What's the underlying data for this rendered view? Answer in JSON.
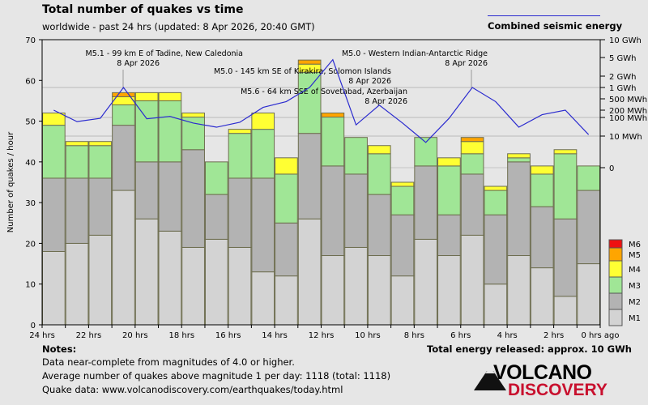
{
  "header": {
    "title": "Total number of quakes vs time",
    "subtitle": "worldwide - past 24 hrs (updated: 8 Apr 2026, 20:40 GMT)",
    "energy_legend": "Combined seismic energy"
  },
  "footer": {
    "notes_title": "Notes:",
    "notes": [
      "Data near-complete from magnitudes of 4.0 or higher.",
      "Average number of quakes above magnitude 1 per day: 1118 (total: 1118)",
      "Quake data: www.volcanodiscovery.com/earthquakes/today.html"
    ],
    "energy_total": "Total energy released: approx. 10 GWh",
    "logo_line1": "VOLCANO",
    "logo_line2": "DISCOVERY"
  },
  "colors": {
    "M1": "#d3d3d3",
    "M2": "#b3b3b3",
    "M3": "#a0e696",
    "M4": "#ffff33",
    "M5": "#ffa500",
    "M6": "#ee1111",
    "energy_line": "#2b2bcf",
    "background": "#e6e6e6"
  },
  "chart_data": {
    "type": "bar",
    "stacked": true,
    "ylabel": "Number of quakes / hour",
    "ylim": [
      0,
      70
    ],
    "yticks": [
      "0",
      "10",
      "20",
      "30",
      "40",
      "50",
      "60",
      "70"
    ],
    "xticks": [
      "24 hrs",
      "22 hrs",
      "20 hrs",
      "18 hrs",
      "16 hrs",
      "14 hrs",
      "12 hrs",
      "10 hrs",
      "8 hrs",
      "6 hrs",
      "4 hrs",
      "2 hrs",
      "0 hrs ago"
    ],
    "grid": true,
    "legend_position": "right-bottom",
    "series": [
      {
        "name": "M1",
        "values": [
          18,
          20,
          22,
          33,
          26,
          23,
          19,
          21,
          19,
          13,
          12,
          26,
          17,
          19,
          17,
          12,
          21,
          17,
          22,
          10,
          17,
          14,
          7,
          15
        ]
      },
      {
        "name": "M2",
        "values": [
          18,
          16,
          14,
          16,
          14,
          17,
          24,
          11,
          17,
          23,
          13,
          21,
          22,
          18,
          15,
          15,
          18,
          10,
          15,
          17,
          23,
          15,
          19,
          18
        ]
      },
      {
        "name": "M3",
        "values": [
          13,
          8,
          8,
          5,
          15,
          15,
          8,
          8,
          11,
          12,
          12,
          15,
          12,
          9,
          10,
          7,
          7,
          12,
          5,
          6,
          1,
          8,
          16,
          6
        ]
      },
      {
        "name": "M4",
        "values": [
          3,
          1,
          1,
          2,
          2,
          2,
          1,
          0,
          1,
          4,
          4,
          2,
          0,
          0,
          2,
          1,
          0,
          2,
          3,
          1,
          1,
          2,
          1,
          0
        ]
      },
      {
        "name": "M5",
        "values": [
          0,
          0,
          0,
          1,
          0,
          0,
          0,
          0,
          0,
          0,
          0,
          1,
          1,
          0,
          0,
          0,
          0,
          0,
          1,
          0,
          0,
          0,
          0,
          0
        ]
      },
      {
        "name": "M6",
        "values": [
          0,
          0,
          0,
          0,
          0,
          0,
          0,
          0,
          0,
          0,
          0,
          0,
          0,
          0,
          0,
          0,
          0,
          0,
          0,
          0,
          0,
          0,
          0,
          0
        ]
      }
    ],
    "energy": {
      "name": "Combined seismic energy",
      "unit": "MWh",
      "scale": "log",
      "ticks": [
        "0",
        "10 MWh",
        "100 MWh",
        "200 MWh",
        "500 MWh",
        "1 GWh",
        "2 GWh",
        "5 GWh",
        "10 GWh"
      ],
      "values": [
        200,
        60,
        90,
        1000,
        85,
        110,
        50,
        30,
        55,
        250,
        400,
        1000,
        4500,
        40,
        300,
        50,
        8,
        90,
        1000,
        400,
        30,
        130,
        200,
        12
      ]
    },
    "annotations": [
      {
        "text": "M5.1 - 99 km E of Tadine, New Caledonia",
        "date": "8 Apr 2026",
        "bar": 4
      },
      {
        "text": "M5.0 - 145 km SE of Kirakira, Solomon Islands",
        "date": "8 Apr 2026",
        "bar": 12
      },
      {
        "text": "M5.6 - 64 km SSE of Sovetabad, Azerbaijan",
        "date": "8 Apr 2026",
        "bar": 12
      },
      {
        "text": "M5.0 - Western Indian-Antarctic Ridge",
        "date": "8 Apr 2026",
        "bar": 19
      }
    ]
  }
}
